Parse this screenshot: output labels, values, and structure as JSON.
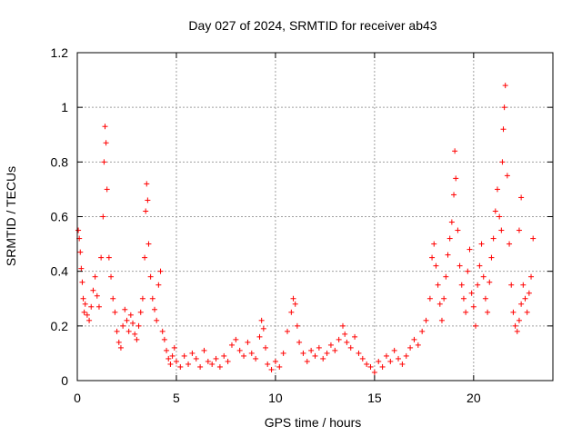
{
  "chart_data": {
    "type": "scatter",
    "title": "Day 027 of 2024, SRMTID for receiver ab43",
    "xlabel": "GPS time / hours",
    "ylabel": "SRMTID / TECUs",
    "xlim": [
      0,
      24
    ],
    "ylim": [
      0,
      1.2
    ],
    "x_ticks": [
      0,
      5,
      10,
      15,
      20
    ],
    "x_tick_labels": [
      "0",
      "5",
      "10",
      "15",
      "20"
    ],
    "y_ticks": [
      0,
      0.2,
      0.4,
      0.6,
      0.8,
      1,
      1.2
    ],
    "y_tick_labels": [
      "0",
      "0.2",
      "0.4",
      "0.6",
      "0.8",
      "1",
      "1.2"
    ],
    "grid": true,
    "marker": "plus",
    "color": "#ff0000",
    "series": [
      {
        "name": "SRMTID",
        "points": [
          [
            0.05,
            0.55
          ],
          [
            0.1,
            0.52
          ],
          [
            0.15,
            0.47
          ],
          [
            0.2,
            0.41
          ],
          [
            0.25,
            0.36
          ],
          [
            0.3,
            0.3
          ],
          [
            0.35,
            0.25
          ],
          [
            0.4,
            0.28
          ],
          [
            0.5,
            0.24
          ],
          [
            0.6,
            0.22
          ],
          [
            0.7,
            0.27
          ],
          [
            0.8,
            0.33
          ],
          [
            0.9,
            0.38
          ],
          [
            1.0,
            0.31
          ],
          [
            1.1,
            0.27
          ],
          [
            1.2,
            0.45
          ],
          [
            1.3,
            0.6
          ],
          [
            1.35,
            0.8
          ],
          [
            1.4,
            0.93
          ],
          [
            1.45,
            0.87
          ],
          [
            1.5,
            0.7
          ],
          [
            1.6,
            0.45
          ],
          [
            1.7,
            0.38
          ],
          [
            1.8,
            0.3
          ],
          [
            1.9,
            0.25
          ],
          [
            2.0,
            0.18
          ],
          [
            2.1,
            0.14
          ],
          [
            2.2,
            0.12
          ],
          [
            2.3,
            0.2
          ],
          [
            2.4,
            0.26
          ],
          [
            2.5,
            0.22
          ],
          [
            2.6,
            0.18
          ],
          [
            2.7,
            0.24
          ],
          [
            2.8,
            0.21
          ],
          [
            2.9,
            0.17
          ],
          [
            3.0,
            0.15
          ],
          [
            3.1,
            0.2
          ],
          [
            3.2,
            0.25
          ],
          [
            3.3,
            0.3
          ],
          [
            3.4,
            0.45
          ],
          [
            3.45,
            0.62
          ],
          [
            3.5,
            0.72
          ],
          [
            3.55,
            0.66
          ],
          [
            3.6,
            0.5
          ],
          [
            3.7,
            0.38
          ],
          [
            3.8,
            0.3
          ],
          [
            3.9,
            0.26
          ],
          [
            4.0,
            0.22
          ],
          [
            4.1,
            0.35
          ],
          [
            4.2,
            0.4
          ],
          [
            4.3,
            0.18
          ],
          [
            4.4,
            0.15
          ],
          [
            4.5,
            0.11
          ],
          [
            4.6,
            0.08
          ],
          [
            4.7,
            0.06
          ],
          [
            4.8,
            0.09
          ],
          [
            4.9,
            0.12
          ],
          [
            5.0,
            0.07
          ],
          [
            5.2,
            0.05
          ],
          [
            5.4,
            0.09
          ],
          [
            5.6,
            0.06
          ],
          [
            5.8,
            0.1
          ],
          [
            6.0,
            0.08
          ],
          [
            6.2,
            0.05
          ],
          [
            6.4,
            0.11
          ],
          [
            6.6,
            0.07
          ],
          [
            6.8,
            0.06
          ],
          [
            7.0,
            0.08
          ],
          [
            7.2,
            0.05
          ],
          [
            7.4,
            0.09
          ],
          [
            7.6,
            0.07
          ],
          [
            7.8,
            0.13
          ],
          [
            8.0,
            0.15
          ],
          [
            8.2,
            0.11
          ],
          [
            8.4,
            0.09
          ],
          [
            8.6,
            0.14
          ],
          [
            8.8,
            0.1
          ],
          [
            9.0,
            0.08
          ],
          [
            9.2,
            0.16
          ],
          [
            9.3,
            0.22
          ],
          [
            9.4,
            0.19
          ],
          [
            9.5,
            0.12
          ],
          [
            9.6,
            0.06
          ],
          [
            9.8,
            0.04
          ],
          [
            10.0,
            0.07
          ],
          [
            10.2,
            0.05
          ],
          [
            10.4,
            0.1
          ],
          [
            10.6,
            0.18
          ],
          [
            10.8,
            0.25
          ],
          [
            10.9,
            0.3
          ],
          [
            11.0,
            0.28
          ],
          [
            11.1,
            0.2
          ],
          [
            11.2,
            0.14
          ],
          [
            11.4,
            0.1
          ],
          [
            11.6,
            0.07
          ],
          [
            11.8,
            0.11
          ],
          [
            12.0,
            0.09
          ],
          [
            12.2,
            0.12
          ],
          [
            12.4,
            0.08
          ],
          [
            12.6,
            0.1
          ],
          [
            12.8,
            0.13
          ],
          [
            13.0,
            0.11
          ],
          [
            13.2,
            0.15
          ],
          [
            13.4,
            0.2
          ],
          [
            13.5,
            0.17
          ],
          [
            13.6,
            0.14
          ],
          [
            13.8,
            0.12
          ],
          [
            14.0,
            0.16
          ],
          [
            14.2,
            0.1
          ],
          [
            14.4,
            0.08
          ],
          [
            14.6,
            0.06
          ],
          [
            14.8,
            0.05
          ],
          [
            15.0,
            0.03
          ],
          [
            15.2,
            0.07
          ],
          [
            15.4,
            0.05
          ],
          [
            15.6,
            0.09
          ],
          [
            15.8,
            0.07
          ],
          [
            16.0,
            0.11
          ],
          [
            16.2,
            0.08
          ],
          [
            16.4,
            0.06
          ],
          [
            16.6,
            0.09
          ],
          [
            16.8,
            0.12
          ],
          [
            17.0,
            0.15
          ],
          [
            17.2,
            0.13
          ],
          [
            17.4,
            0.18
          ],
          [
            17.6,
            0.22
          ],
          [
            17.8,
            0.3
          ],
          [
            17.9,
            0.45
          ],
          [
            18.0,
            0.5
          ],
          [
            18.1,
            0.42
          ],
          [
            18.2,
            0.35
          ],
          [
            18.3,
            0.28
          ],
          [
            18.4,
            0.22
          ],
          [
            18.5,
            0.3
          ],
          [
            18.6,
            0.38
          ],
          [
            18.7,
            0.46
          ],
          [
            18.8,
            0.52
          ],
          [
            18.9,
            0.58
          ],
          [
            19.0,
            0.68
          ],
          [
            19.05,
            0.84
          ],
          [
            19.1,
            0.74
          ],
          [
            19.2,
            0.55
          ],
          [
            19.3,
            0.42
          ],
          [
            19.4,
            0.35
          ],
          [
            19.5,
            0.3
          ],
          [
            19.6,
            0.25
          ],
          [
            19.7,
            0.4
          ],
          [
            19.8,
            0.48
          ],
          [
            19.9,
            0.32
          ],
          [
            20.0,
            0.27
          ],
          [
            20.1,
            0.2
          ],
          [
            20.2,
            0.35
          ],
          [
            20.3,
            0.42
          ],
          [
            20.4,
            0.5
          ],
          [
            20.5,
            0.38
          ],
          [
            20.6,
            0.3
          ],
          [
            20.7,
            0.25
          ],
          [
            20.8,
            0.36
          ],
          [
            20.9,
            0.45
          ],
          [
            21.0,
            0.52
          ],
          [
            21.1,
            0.62
          ],
          [
            21.2,
            0.7
          ],
          [
            21.3,
            0.6
          ],
          [
            21.4,
            0.55
          ],
          [
            21.45,
            0.8
          ],
          [
            21.5,
            0.92
          ],
          [
            21.55,
            1.0
          ],
          [
            21.6,
            1.08
          ],
          [
            21.7,
            0.75
          ],
          [
            21.8,
            0.5
          ],
          [
            21.9,
            0.35
          ],
          [
            22.0,
            0.25
          ],
          [
            22.1,
            0.2
          ],
          [
            22.2,
            0.18
          ],
          [
            22.3,
            0.22
          ],
          [
            22.4,
            0.28
          ],
          [
            22.5,
            0.35
          ],
          [
            22.6,
            0.3
          ],
          [
            22.7,
            0.25
          ],
          [
            22.8,
            0.32
          ],
          [
            22.9,
            0.38
          ],
          [
            23.0,
            0.52
          ],
          [
            22.3,
            0.55
          ],
          [
            22.4,
            0.67
          ]
        ]
      }
    ]
  }
}
